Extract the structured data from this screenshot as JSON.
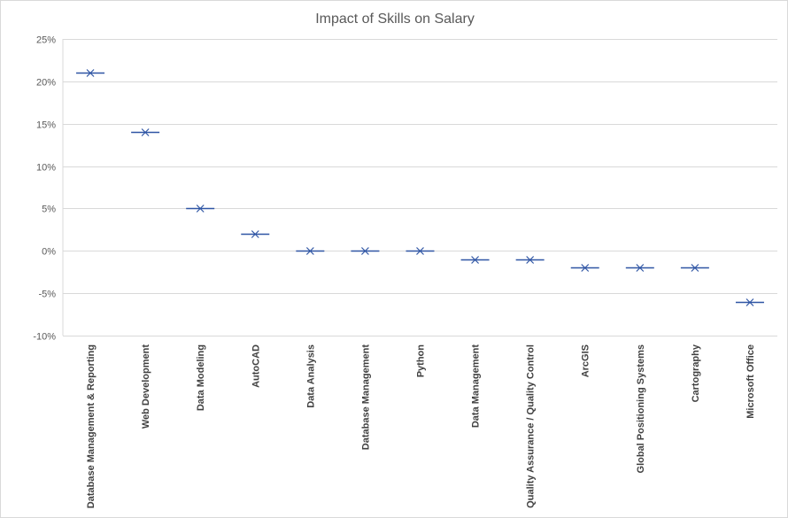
{
  "chart_data": {
    "type": "scatter",
    "title": "Impact of Skills on Salary",
    "xlabel": "",
    "ylabel": "",
    "categories": [
      "Database Management & Reporting",
      "Web Development",
      "Data Modeling",
      "AutoCAD",
      "Data Analysis",
      "Database Management",
      "Python",
      "Data Management",
      "Quality Assurance / Quality Control",
      "ArcGIS",
      "Global Positioning Systems",
      "Cartography",
      "Microsoft Office"
    ],
    "values": [
      21,
      14,
      5,
      2,
      0,
      0,
      0,
      -1,
      -1,
      -2,
      -2,
      -2,
      -6
    ],
    "ylim": [
      -10,
      25
    ],
    "yticks": [
      25,
      20,
      15,
      10,
      5,
      0,
      -5,
      -10
    ],
    "ytick_labels": [
      "25%",
      "20%",
      "15%",
      "10%",
      "5%",
      "0%",
      "-5%",
      "-10%"
    ],
    "grid": true,
    "legend": "none",
    "series_color": "#2f55a4",
    "grid_color": "#d9d9d9"
  }
}
